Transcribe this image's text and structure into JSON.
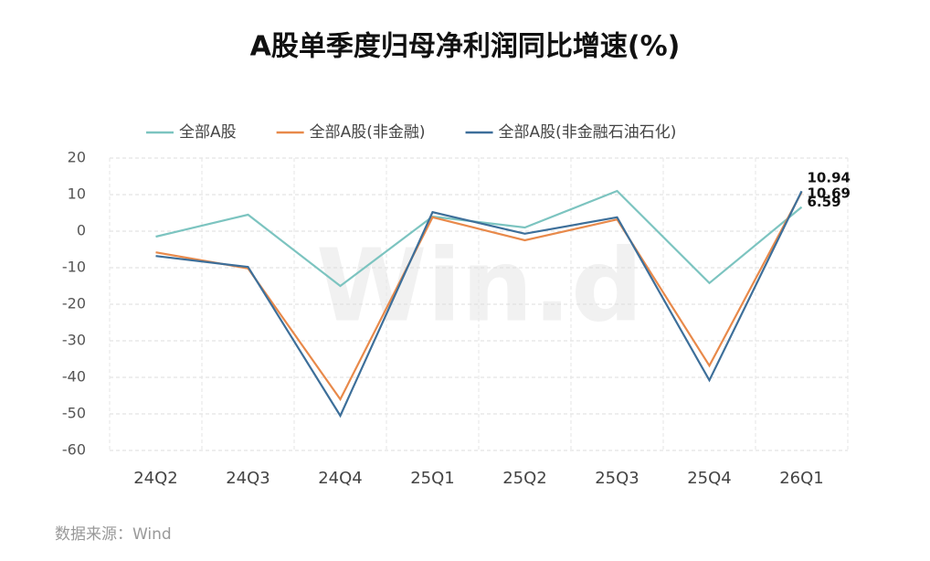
{
  "chart_data": {
    "type": "line",
    "title": "A股单季度归母净利润同比增速(%)",
    "categories": [
      "24Q2",
      "24Q3",
      "24Q4",
      "25Q1",
      "25Q2",
      "25Q3",
      "25Q4",
      "26Q1"
    ],
    "series": [
      {
        "name": "全部A股",
        "color": "#7cc4c0",
        "values": [
          -1.5,
          4.5,
          -15,
          4,
          1,
          11,
          -14.2,
          6.59
        ]
      },
      {
        "name": "全部A股(非金融)",
        "color": "#e8894a",
        "values": [
          -5.8,
          -10.2,
          -46,
          3.8,
          -2.5,
          3.2,
          -36.8,
          10.69
        ]
      },
      {
        "name": "全部A股(非金融石油石化)",
        "color": "#3d6f9a",
        "values": [
          -6.8,
          -9.8,
          -50.5,
          5.2,
          -0.7,
          3.8,
          -40.8,
          10.94
        ]
      }
    ],
    "ylim": [
      -60,
      20
    ],
    "yticks": [
      20,
      10,
      0,
      -10,
      -20,
      -30,
      -40,
      -50,
      -60
    ],
    "grid": true,
    "source": "数据来源：Wind",
    "watermark": "Win.d"
  }
}
